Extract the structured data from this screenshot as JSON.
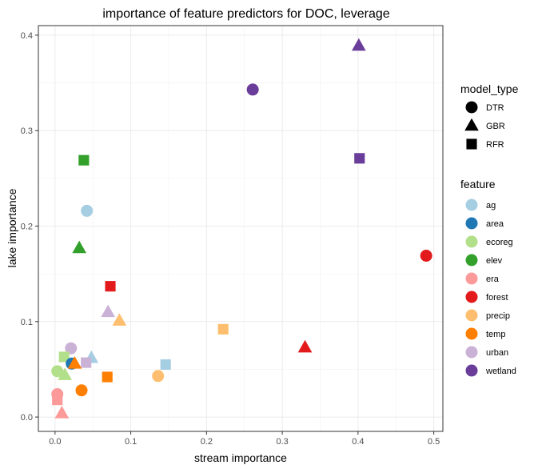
{
  "chart_data": {
    "type": "scatter",
    "title": "importance of feature predictors for DOC, leverage",
    "xlabel": "stream importance",
    "ylabel": "lake importance",
    "xlim": [
      -0.022,
      0.512
    ],
    "ylim": [
      -0.015,
      0.41
    ],
    "xticks": [
      0.0,
      0.1,
      0.2,
      0.3,
      0.4,
      0.5
    ],
    "xtick_labels": [
      "0.0",
      "0.1",
      "0.2",
      "0.3",
      "0.4",
      "0.5"
    ],
    "yticks": [
      0.0,
      0.1,
      0.2,
      0.3,
      0.4
    ],
    "ytick_labels": [
      "0.0",
      "0.1",
      "0.2",
      "0.3",
      "0.4"
    ],
    "grid": true,
    "legend_placement": "right",
    "legends": {
      "model_type": {
        "title": "model_type",
        "entries": [
          {
            "label": "DTR",
            "shape": "circle"
          },
          {
            "label": "GBR",
            "shape": "triangle"
          },
          {
            "label": "RFR",
            "shape": "square"
          }
        ]
      },
      "feature": {
        "title": "feature",
        "entries": [
          {
            "label": "ag",
            "color": "#A6CEE3"
          },
          {
            "label": "area",
            "color": "#1F78B4"
          },
          {
            "label": "ecoreg",
            "color": "#B2DF8A"
          },
          {
            "label": "elev",
            "color": "#33A02C"
          },
          {
            "label": "era",
            "color": "#FB9A99"
          },
          {
            "label": "forest",
            "color": "#E31A1C"
          },
          {
            "label": "precip",
            "color": "#FDBF6F"
          },
          {
            "label": "temp",
            "color": "#FF7F00"
          },
          {
            "label": "urban",
            "color": "#CAB2D6"
          },
          {
            "label": "wetland",
            "color": "#6A3D9A"
          }
        ]
      }
    },
    "points": [
      {
        "feature": "wetland",
        "model": "GBR",
        "x": 0.401,
        "y": 0.389
      },
      {
        "feature": "wetland",
        "model": "DTR",
        "x": 0.261,
        "y": 0.343
      },
      {
        "feature": "wetland",
        "model": "RFR",
        "x": 0.402,
        "y": 0.271
      },
      {
        "feature": "elev",
        "model": "RFR",
        "x": 0.038,
        "y": 0.269
      },
      {
        "feature": "ag",
        "model": "DTR",
        "x": 0.042,
        "y": 0.216
      },
      {
        "feature": "elev",
        "model": "GBR",
        "x": 0.032,
        "y": 0.177
      },
      {
        "feature": "forest",
        "model": "DTR",
        "x": 0.49,
        "y": 0.169
      },
      {
        "feature": "forest",
        "model": "RFR",
        "x": 0.073,
        "y": 0.137
      },
      {
        "feature": "urban",
        "model": "GBR",
        "x": 0.07,
        "y": 0.11
      },
      {
        "feature": "precip",
        "model": "GBR",
        "x": 0.085,
        "y": 0.101
      },
      {
        "feature": "precip",
        "model": "RFR",
        "x": 0.222,
        "y": 0.092
      },
      {
        "feature": "forest",
        "model": "GBR",
        "x": 0.33,
        "y": 0.073
      },
      {
        "feature": "urban",
        "model": "DTR",
        "x": 0.021,
        "y": 0.072
      },
      {
        "feature": "ecoreg",
        "model": "RFR",
        "x": 0.012,
        "y": 0.063
      },
      {
        "feature": "ag",
        "model": "GBR",
        "x": 0.048,
        "y": 0.062
      },
      {
        "feature": "urban",
        "model": "RFR",
        "x": 0.041,
        "y": 0.057
      },
      {
        "feature": "area",
        "model": "DTR",
        "x": 0.022,
        "y": 0.056
      },
      {
        "feature": "temp",
        "model": "GBR",
        "x": 0.026,
        "y": 0.056
      },
      {
        "feature": "ag",
        "model": "RFR",
        "x": 0.146,
        "y": 0.055
      },
      {
        "feature": "ecoreg",
        "model": "DTR",
        "x": 0.003,
        "y": 0.048
      },
      {
        "feature": "ecoreg",
        "model": "GBR",
        "x": 0.013,
        "y": 0.044
      },
      {
        "feature": "temp",
        "model": "RFR",
        "x": 0.069,
        "y": 0.042
      },
      {
        "feature": "precip",
        "model": "DTR",
        "x": 0.136,
        "y": 0.043
      },
      {
        "feature": "temp",
        "model": "DTR",
        "x": 0.035,
        "y": 0.028
      },
      {
        "feature": "era",
        "model": "DTR",
        "x": 0.003,
        "y": 0.024
      },
      {
        "feature": "era",
        "model": "RFR",
        "x": 0.003,
        "y": 0.018
      },
      {
        "feature": "era",
        "model": "GBR",
        "x": 0.009,
        "y": 0.004
      }
    ]
  }
}
